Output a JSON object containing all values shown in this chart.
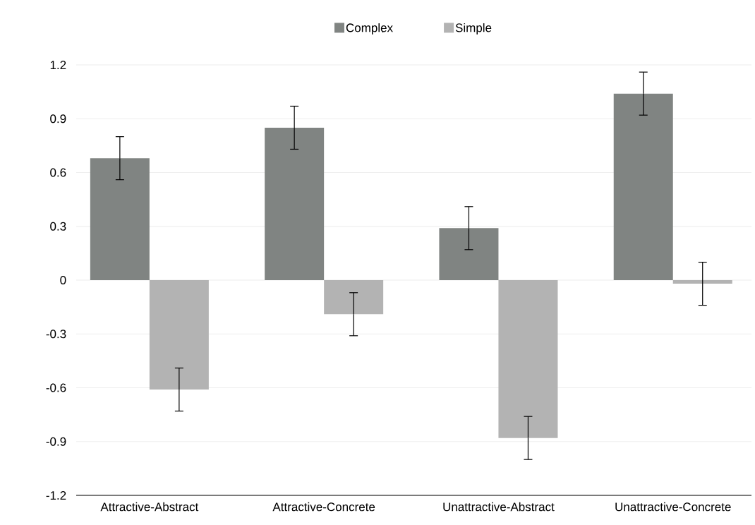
{
  "chart_data": {
    "type": "bar",
    "categories": [
      "Attractive-Abstract",
      "Attractive-Concrete",
      "Unattractive-Abstract",
      "Unattractive-Concrete"
    ],
    "series": [
      {
        "name": "Complex",
        "color": "#808482",
        "values": [
          0.68,
          0.85,
          0.29,
          1.04
        ],
        "errors": [
          0.12,
          0.12,
          0.12,
          0.12
        ]
      },
      {
        "name": "Simple",
        "color": "#b3b3b3",
        "values": [
          -0.61,
          -0.19,
          -0.88,
          -0.02
        ],
        "errors": [
          0.12,
          0.12,
          0.12,
          0.12
        ]
      }
    ],
    "ylim": [
      -1.2,
      1.2
    ],
    "yticks": [
      -1.2,
      -0.9,
      -0.6,
      -0.3,
      0,
      0.3,
      0.6,
      0.9,
      1.2
    ],
    "grid": "y",
    "legend": "top"
  }
}
